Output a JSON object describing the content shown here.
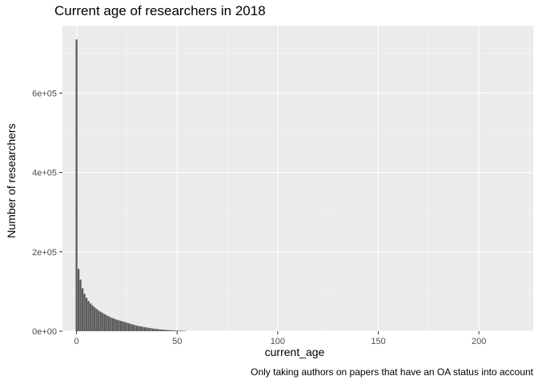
{
  "chart_data": {
    "type": "bar",
    "title": "Current age of researchers in 2018",
    "xlabel": "current_age",
    "ylabel": "Number of researchers",
    "caption": "Only taking authors on papers that have an OA status into account",
    "xlim": [
      -7,
      227
    ],
    "ylim": [
      0,
      770000
    ],
    "x_ticks": [
      0,
      50,
      100,
      150,
      200
    ],
    "y_ticks": [
      0,
      200000,
      400000,
      600000
    ],
    "y_tick_labels": [
      "0e+00",
      "2e+05",
      "4e+05",
      "6e+05"
    ],
    "grid": true,
    "bar_color": "#595959",
    "panel_color": "#ebebeb",
    "x": [
      0,
      1,
      2,
      3,
      4,
      5,
      6,
      7,
      8,
      9,
      10,
      11,
      12,
      13,
      14,
      15,
      16,
      17,
      18,
      19,
      20,
      21,
      22,
      23,
      24,
      25,
      26,
      27,
      28,
      29,
      30,
      31,
      32,
      33,
      34,
      35,
      36,
      37,
      38,
      39,
      40,
      41,
      42,
      43,
      44,
      45,
      46,
      47,
      48,
      49,
      50,
      51,
      52,
      53,
      54
    ],
    "values": [
      735000,
      157000,
      130000,
      108000,
      94000,
      84000,
      76000,
      70000,
      65000,
      60000,
      56000,
      52000,
      49000,
      46000,
      43000,
      40000,
      37500,
      35000,
      33000,
      31000,
      29000,
      27500,
      26000,
      24500,
      23000,
      21500,
      20000,
      18500,
      17000,
      15500,
      14000,
      13000,
      12000,
      11000,
      10000,
      9200,
      8400,
      7600,
      6900,
      6200,
      5600,
      5000,
      4500,
      4000,
      3500,
      3100,
      2700,
      2400,
      2100,
      1800,
      1500,
      1300,
      1100,
      900,
      700
    ]
  }
}
